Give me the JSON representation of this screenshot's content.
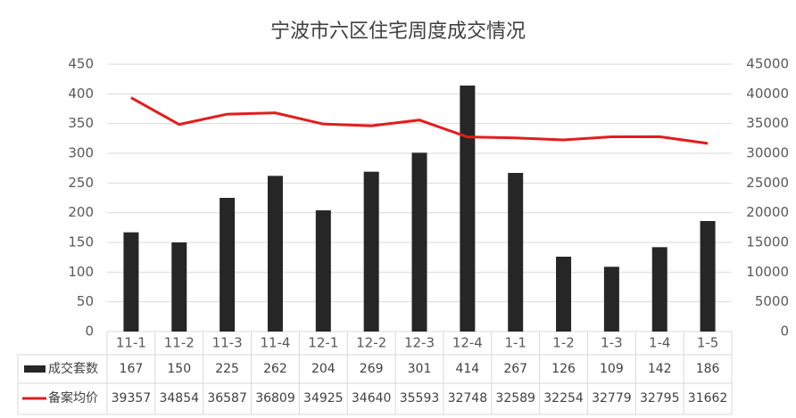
{
  "chart_data": {
    "type": "bar",
    "title": "宁波市六区住宅周度成交情况",
    "categories": [
      "11-1",
      "11-2",
      "11-3",
      "11-4",
      "12-1",
      "12-2",
      "12-3",
      "12-4",
      "1-1",
      "1-2",
      "1-3",
      "1-4",
      "1-5"
    ],
    "series": [
      {
        "name": "成交套数",
        "color": "#262626",
        "values": [
          167,
          150,
          225,
          262,
          204,
          269,
          301,
          414,
          267,
          126,
          109,
          142,
          186
        ]
      },
      {
        "name": "备案均价",
        "color": "#e31c1c",
        "type": "line",
        "axis": "y2",
        "values": [
          39357,
          34854,
          36587,
          36809,
          34925,
          34640,
          35593,
          32748,
          32589,
          32254,
          32779,
          32795,
          31662
        ]
      }
    ],
    "ylim": [
      0,
      450
    ],
    "yticks": [
      0,
      50,
      100,
      150,
      200,
      250,
      300,
      350,
      400,
      450
    ],
    "y2lim": [
      0,
      45000
    ],
    "y2ticks": [
      0,
      5000,
      10000,
      15000,
      20000,
      25000,
      30000,
      35000,
      40000,
      45000
    ],
    "grid": true
  }
}
